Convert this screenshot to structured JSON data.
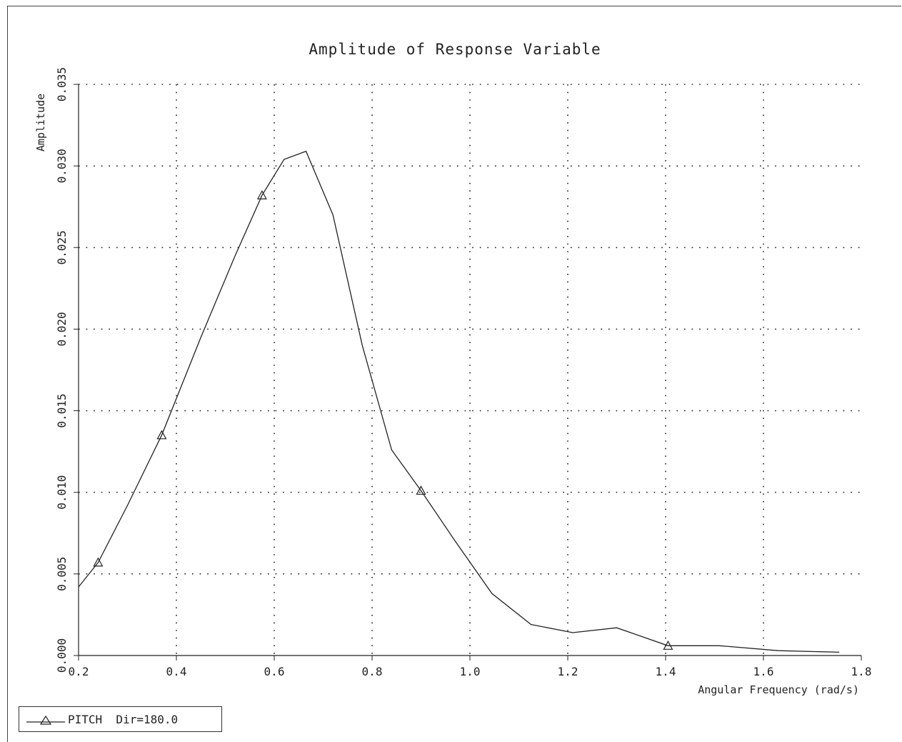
{
  "chart_data": {
    "type": "line",
    "title": "Amplitude of Response Variable",
    "xlabel": "Angular Frequency (rad/s)",
    "ylabel": "Amplitude",
    "xlim": [
      0.2,
      1.8
    ],
    "ylim": [
      0.0,
      0.035
    ],
    "xticks": [
      "0.2",
      "0.4",
      "0.6",
      "0.8",
      "1.0",
      "1.2",
      "1.4",
      "1.6",
      "1.8"
    ],
    "yticks": [
      "0.000",
      "0.005",
      "0.010",
      "0.015",
      "0.020",
      "0.025",
      "0.030",
      "0.035"
    ],
    "grid": true,
    "legend_position": "bottom-left",
    "series": [
      {
        "name": "PITCH  Dir=180.0",
        "marker": "triangle",
        "x": [
          0.2,
          0.24,
          0.3,
          0.37,
          0.45,
          0.52,
          0.575,
          0.62,
          0.665,
          0.72,
          0.78,
          0.84,
          0.9,
          0.97,
          1.045,
          1.125,
          1.21,
          1.3,
          1.405,
          1.51,
          1.63,
          1.755
        ],
        "y": [
          0.0042,
          0.0057,
          0.0092,
          0.0135,
          0.0195,
          0.0245,
          0.0282,
          0.0304,
          0.0309,
          0.027,
          0.019,
          0.0126,
          0.0101,
          0.007,
          0.0038,
          0.0019,
          0.0014,
          0.0017,
          0.0006,
          0.0006,
          0.0003,
          0.0002
        ],
        "marker_points": [
          [
            0.24,
            0.0057
          ],
          [
            0.37,
            0.0135
          ],
          [
            0.575,
            0.0282
          ],
          [
            0.9,
            0.0101
          ],
          [
            1.405,
            0.0006
          ]
        ]
      }
    ]
  }
}
